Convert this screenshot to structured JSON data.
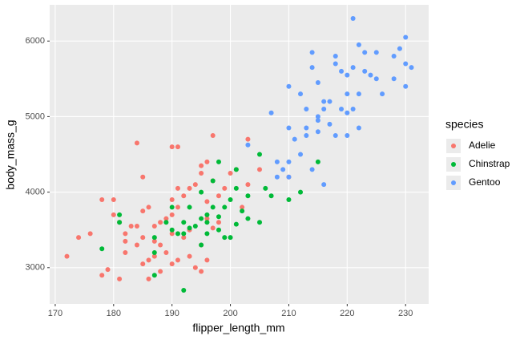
{
  "chart_data": {
    "type": "scatter",
    "x_label": "flipper_length_mm",
    "y_label": "body_mass_g",
    "legend_title": "species",
    "legend_position": "right",
    "xlim": [
      169.05,
      233.95
    ],
    "ylim": [
      2520,
      6480
    ],
    "xticks": [
      170,
      180,
      190,
      200,
      210,
      220,
      230
    ],
    "yticks": [
      3000,
      4000,
      5000,
      6000
    ],
    "grid": true,
    "series": [
      {
        "name": "Adelie",
        "color": "#F8766D",
        "x": [
          172,
          174,
          176,
          178,
          178,
          179,
          180,
          181,
          182,
          182,
          183,
          184,
          184,
          184,
          185,
          185,
          186,
          186,
          187,
          187,
          188,
          188,
          189,
          190,
          190,
          190,
          190,
          191,
          191,
          192,
          193,
          193,
          194,
          195,
          195,
          195,
          196,
          196,
          197,
          197,
          198,
          199,
          200,
          201,
          203,
          205,
          210,
          181,
          185,
          187,
          189,
          191,
          193,
          194,
          195,
          186,
          188,
          190,
          192,
          180,
          185,
          182,
          196,
          191,
          197,
          198,
          203,
          196,
          202
        ],
        "values": [
          3150,
          3400,
          3450,
          3900,
          2900,
          2975,
          3900,
          2850,
          3200,
          3450,
          3550,
          4650,
          3550,
          3300,
          3750,
          3050,
          3800,
          2850,
          3550,
          3150,
          3600,
          3300,
          3200,
          4600,
          3700,
          3450,
          3900,
          4600,
          3800,
          3950,
          4050,
          3500,
          4100,
          4250,
          3300,
          4350,
          4400,
          3650,
          4750,
          4150,
          3950,
          4050,
          4250,
          4300,
          4100,
          4300,
          4200,
          3600,
          3400,
          3350,
          3650,
          3100,
          3150,
          3000,
          2950,
          3100,
          2950,
          3050,
          3400,
          3700,
          4200,
          3350,
          3875,
          4050,
          3525,
          3600,
          4700,
          3100,
          3800
        ]
      },
      {
        "name": "Chinstrap",
        "color": "#00BA38",
        "x": [
          178,
          181,
          181,
          187,
          187,
          189,
          190,
          191,
          192,
          192,
          193,
          193,
          195,
          195,
          195,
          196,
          196,
          196,
          197,
          197,
          198,
          198,
          199,
          199,
          200,
          200,
          201,
          201,
          202,
          203,
          203,
          205,
          205,
          206,
          207,
          210,
          212,
          215,
          187,
          190,
          194,
          192,
          201,
          198
        ],
        "values": [
          3250,
          3700,
          3600,
          3400,
          2900,
          3600,
          3800,
          3450,
          2700,
          3600,
          3525,
          3800,
          3650,
          3300,
          4000,
          3600,
          3700,
          3450,
          3800,
          4150,
          3500,
          3675,
          3400,
          3800,
          3400,
          3900,
          3575,
          4050,
          3750,
          3950,
          3650,
          4500,
          3600,
          4050,
          3950,
          3900,
          4000,
          4400,
          3200,
          3500,
          3550,
          3450,
          4300,
          4400
        ]
      },
      {
        "name": "Gentoo",
        "color": "#619CFF",
        "x": [
          203,
          207,
          208,
          208,
          209,
          210,
          210,
          210,
          210,
          211,
          212,
          212,
          213,
          213,
          214,
          214,
          214,
          215,
          215,
          215,
          215,
          216,
          216,
          217,
          217,
          218,
          218,
          218,
          219,
          219,
          220,
          220,
          220,
          220,
          221,
          221,
          221,
          222,
          222,
          223,
          223,
          224,
          225,
          225,
          226,
          228,
          228,
          229,
          230,
          230,
          230,
          231,
          213,
          216,
          222
        ],
        "values": [
          4625,
          5050,
          4200,
          4400,
          4300,
          4400,
          4200,
          4850,
          5400,
          4700,
          5300,
          4500,
          4850,
          4750,
          5650,
          5850,
          4300,
          5000,
          4950,
          5450,
          4800,
          4100,
          5100,
          5200,
          4900,
          5800,
          5700,
          4750,
          5100,
          5600,
          5550,
          4750,
          5300,
          5050,
          6300,
          5100,
          5650,
          5950,
          5300,
          5600,
          5850,
          5550,
          5850,
          5500,
          5300,
          5800,
          5500,
          5900,
          6050,
          5700,
          5400,
          5650,
          5100,
          5200,
          4850
        ]
      }
    ]
  }
}
